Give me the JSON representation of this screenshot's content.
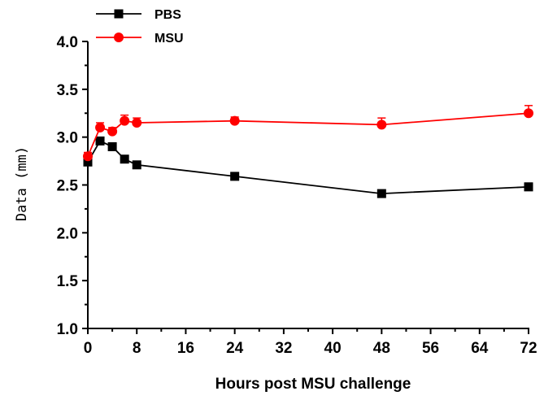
{
  "chart_data": {
    "type": "line",
    "title": "",
    "xlabel": "Hours post MSU challenge",
    "ylabel": "Data (mm)",
    "xlim": [
      0,
      72
    ],
    "ylim": [
      1.0,
      4.0
    ],
    "x_ticks": [
      0,
      8,
      16,
      24,
      32,
      40,
      48,
      56,
      64,
      72
    ],
    "x_tick_labels": [
      "0",
      "8",
      "16",
      "24",
      "32",
      "40",
      "48",
      "56",
      "64",
      "72"
    ],
    "y_ticks": [
      1.0,
      1.5,
      2.0,
      2.5,
      3.0,
      3.5,
      4.0
    ],
    "y_tick_labels": [
      "1.0",
      "1.5",
      "2.0",
      "2.5",
      "3.0",
      "3.5",
      "4.0"
    ],
    "grid": false,
    "legend_position": "top-left",
    "x": [
      0,
      2,
      4,
      6,
      8,
      24,
      48,
      72
    ],
    "series": [
      {
        "name": "PBS",
        "color": "#000000",
        "marker": "square",
        "values": [
          2.74,
          2.96,
          2.9,
          2.77,
          2.71,
          2.59,
          2.41,
          2.48
        ],
        "errors": [
          0.03,
          0.03,
          0.03,
          0.03,
          0.03,
          0.03,
          0.02,
          0.04
        ]
      },
      {
        "name": "MSU",
        "color": "#ff0000",
        "marker": "circle",
        "values": [
          2.8,
          3.1,
          3.06,
          3.17,
          3.15,
          3.17,
          3.13,
          3.25
        ],
        "errors": [
          0.04,
          0.05,
          0.04,
          0.06,
          0.05,
          0.04,
          0.07,
          0.08
        ]
      }
    ]
  }
}
